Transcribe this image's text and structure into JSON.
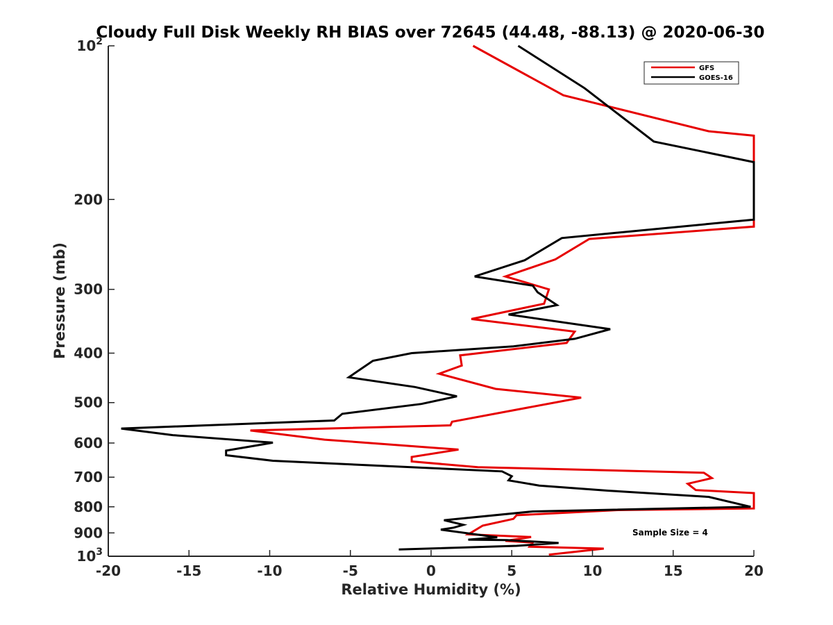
{
  "chart_data": {
    "type": "line",
    "title": "Cloudy Full Disk Weekly RH BIAS over 72645 (44.48, -88.13) @ 2020-06-30",
    "xlabel": "Relative Humidity (%)",
    "ylabel": "Pressure (mb)",
    "xlim": [
      -20,
      20
    ],
    "ylim": [
      100,
      1000
    ],
    "y_scale": "log",
    "y_reversed": true,
    "x_ticks": [
      -20,
      -15,
      -10,
      -5,
      0,
      5,
      10,
      15,
      20
    ],
    "x_tick_labels": [
      "-20",
      "-15",
      "-10",
      "-5",
      "0",
      "5",
      "10",
      "15",
      "20"
    ],
    "y_ticks": [
      100,
      200,
      300,
      400,
      500,
      600,
      700,
      800,
      900,
      1000
    ],
    "y_tick_labels": [
      {
        "base": "10",
        "exp": "2"
      },
      {
        "base": "200",
        "exp": ""
      },
      {
        "base": "300",
        "exp": ""
      },
      {
        "base": "400",
        "exp": ""
      },
      {
        "base": "500",
        "exp": ""
      },
      {
        "base": "600",
        "exp": ""
      },
      {
        "base": "700",
        "exp": ""
      },
      {
        "base": "800",
        "exp": ""
      },
      {
        "base": "900",
        "exp": ""
      },
      {
        "base": "10",
        "exp": "3"
      }
    ],
    "grid": false,
    "legend_position": "top-right",
    "annotation": "Sample Size = 4",
    "series": [
      {
        "name": "GFS",
        "color": "#e60000",
        "points": [
          [
            2.6,
            100
          ],
          [
            8.2,
            125
          ],
          [
            17.2,
            147
          ],
          [
            20.0,
            150
          ],
          [
            20.0,
            226
          ],
          [
            9.8,
            239
          ],
          [
            7.7,
            262
          ],
          [
            4.6,
            283
          ],
          [
            7.3,
            300
          ],
          [
            7.0,
            320
          ],
          [
            2.5,
            343
          ],
          [
            8.9,
            363
          ],
          [
            8.4,
            382
          ],
          [
            1.8,
            404
          ],
          [
            1.9,
            423
          ],
          [
            0.5,
            439
          ],
          [
            4.0,
            470
          ],
          [
            9.3,
            489
          ],
          [
            1.3,
            545
          ],
          [
            1.2,
            554
          ],
          [
            -11.2,
            567
          ],
          [
            -6.6,
            591
          ],
          [
            1.7,
            618
          ],
          [
            -1.2,
            639
          ],
          [
            -1.2,
            652
          ],
          [
            2.9,
            669
          ],
          [
            16.9,
            686
          ],
          [
            17.4,
            703
          ],
          [
            15.9,
            721
          ],
          [
            16.4,
            742
          ],
          [
            20.0,
            752
          ],
          [
            20.0,
            806
          ],
          [
            11.6,
            812
          ],
          [
            5.3,
            831
          ],
          [
            5.1,
            845
          ],
          [
            3.2,
            871
          ],
          [
            2.3,
            906
          ],
          [
            6.2,
            917
          ],
          [
            4.6,
            933
          ],
          [
            6.3,
            940
          ],
          [
            6.1,
            958
          ],
          [
            10.7,
            966
          ],
          [
            7.3,
            993
          ]
        ]
      },
      {
        "name": "GOES-16",
        "color": "#000000",
        "points": [
          [
            5.4,
            100
          ],
          [
            9.5,
            121
          ],
          [
            13.8,
            154
          ],
          [
            20.0,
            169
          ],
          [
            20.0,
            219
          ],
          [
            8.1,
            238
          ],
          [
            5.8,
            263
          ],
          [
            2.7,
            283
          ],
          [
            6.3,
            295
          ],
          [
            6.6,
            304
          ],
          [
            7.8,
            322
          ],
          [
            4.8,
            336
          ],
          [
            11.1,
            359
          ],
          [
            8.9,
            375
          ],
          [
            5.1,
            388
          ],
          [
            -1.2,
            400
          ],
          [
            -3.6,
            414
          ],
          [
            -5.1,
            446
          ],
          [
            -1.0,
            466
          ],
          [
            1.6,
            486
          ],
          [
            -0.6,
            503
          ],
          [
            -5.5,
            526
          ],
          [
            -6.0,
            542
          ],
          [
            -19.2,
            562
          ],
          [
            -16.0,
            579
          ],
          [
            -9.8,
            599
          ],
          [
            -12.7,
            621
          ],
          [
            -12.7,
            634
          ],
          [
            -9.8,
            650
          ],
          [
            4.4,
            682
          ],
          [
            5.0,
            697
          ],
          [
            4.8,
            710
          ],
          [
            6.7,
            727
          ],
          [
            11.0,
            744
          ],
          [
            17.2,
            765
          ],
          [
            19.8,
            800
          ],
          [
            6.3,
            817
          ],
          [
            0.8,
            850
          ],
          [
            2.0,
            868
          ],
          [
            1.4,
            879
          ],
          [
            0.6,
            887
          ],
          [
            4.1,
            918
          ],
          [
            2.3,
            928
          ],
          [
            4.7,
            930
          ],
          [
            7.9,
            942
          ],
          [
            5.3,
            954
          ],
          [
            -2.0,
            970
          ]
        ]
      }
    ]
  }
}
